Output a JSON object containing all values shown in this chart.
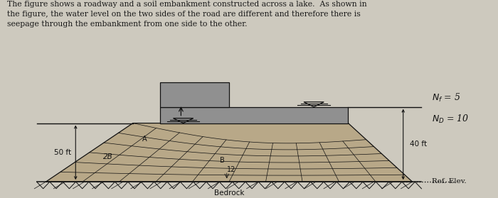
{
  "bg_color": "#cdc9be",
  "text_color": "#1a1a1a",
  "title_text": "The figure shows a roadway and a soil embankment constructed across a lake.  As shown in\nthe figure, the water level on the two sides of the road are different and therefore there is\nseepage through the embankment from one side to the other.",
  "fig_width": 7.0,
  "fig_height": 2.79,
  "label_50ft": "50 ft",
  "label_40ft": "40 ft",
  "label_Nf": "$N_f$ = 5",
  "label_Nd": "$N_D$ = 10",
  "label_bedrock": "Bedrock",
  "label_ref": "Ref. Elev.",
  "label_A": "A",
  "label_B": "B",
  "label_2B": "2B",
  "label_12": "12",
  "embankment_color": "#b8a888",
  "road_color": "#909090",
  "line_color": "#111111"
}
